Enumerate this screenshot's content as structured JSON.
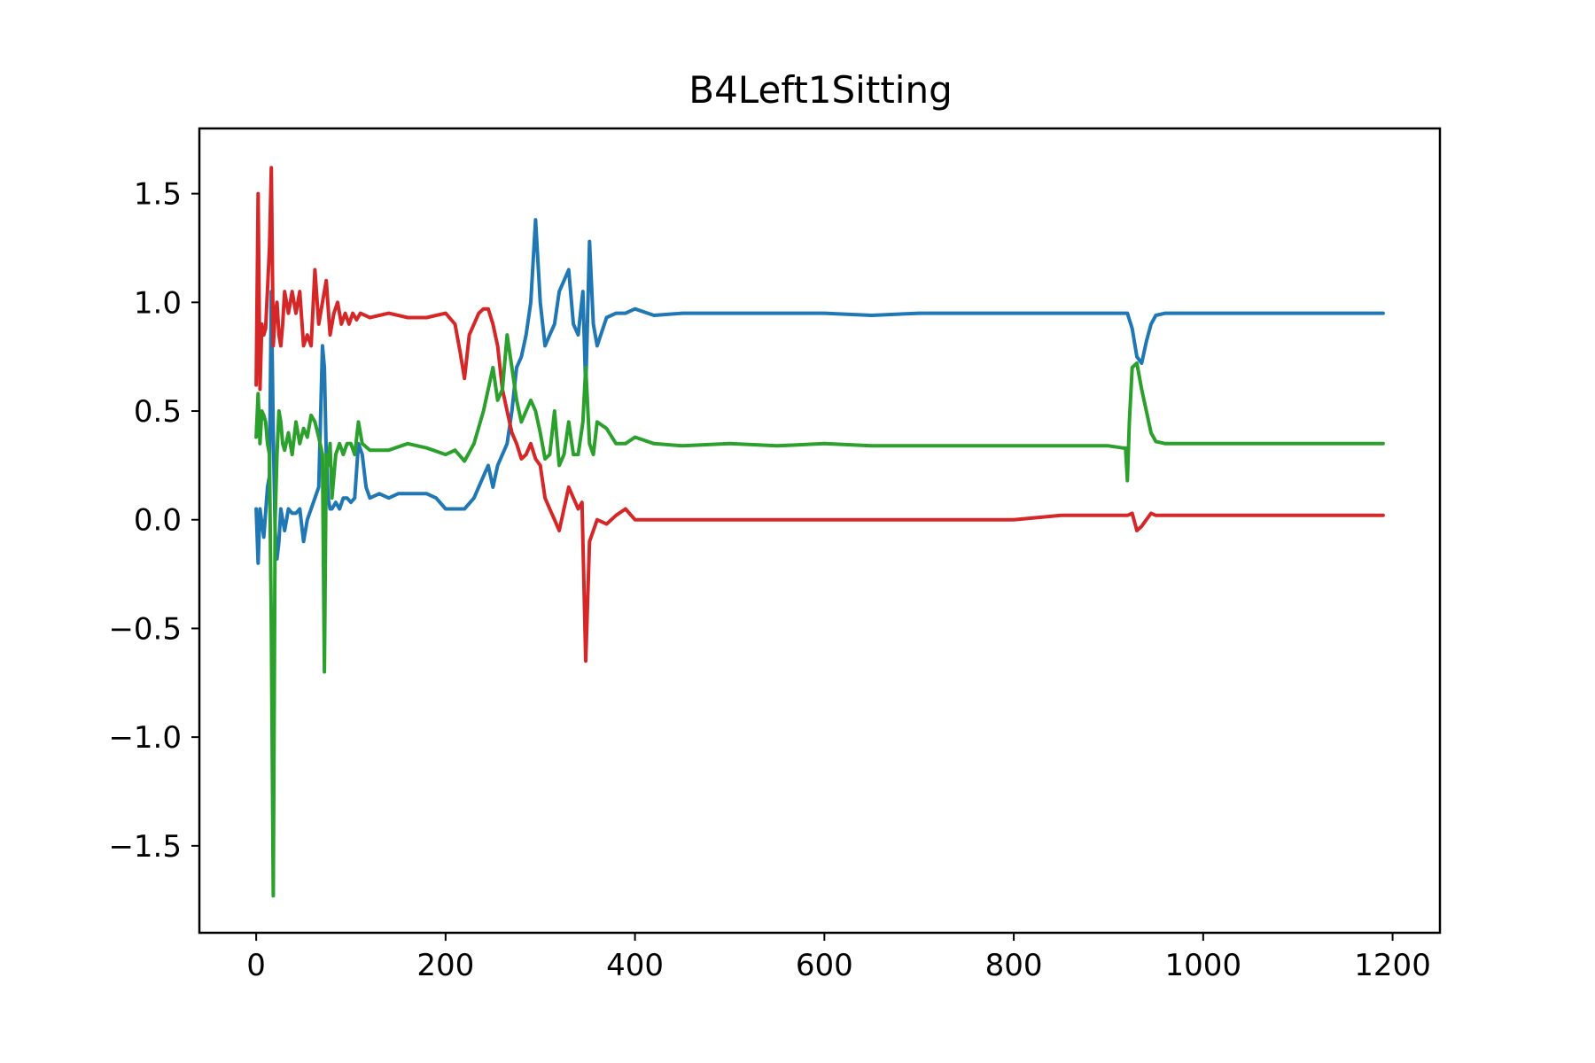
{
  "chart_data": {
    "type": "line",
    "title": "B4Left1Sitting",
    "xlabel": "",
    "ylabel": "",
    "xlim": [
      -60,
      1250
    ],
    "ylim": [
      -1.9,
      1.8
    ],
    "xticks": [
      0,
      200,
      400,
      600,
      800,
      1000,
      1200
    ],
    "xtick_labels": [
      "0",
      "200",
      "400",
      "600",
      "800",
      "1000",
      "1200"
    ],
    "yticks": [
      -1.5,
      -1.0,
      -0.5,
      0.0,
      0.5,
      1.0,
      1.5
    ],
    "ytick_labels": [
      "−1.5",
      "−1.0",
      "−0.5",
      "0.0",
      "0.5",
      "1.0",
      "1.5"
    ],
    "grid": false,
    "legend": "none",
    "series": [
      {
        "color": "#1f77b4",
        "x": [
          0,
          2,
          4,
          8,
          12,
          14,
          16,
          18,
          20,
          22,
          24,
          26,
          28,
          30,
          34,
          38,
          42,
          46,
          50,
          54,
          58,
          62,
          66,
          70,
          72,
          74,
          76,
          78,
          80,
          84,
          88,
          92,
          96,
          100,
          104,
          108,
          112,
          116,
          120,
          130,
          140,
          150,
          160,
          170,
          180,
          190,
          200,
          210,
          220,
          230,
          240,
          245,
          250,
          255,
          260,
          265,
          270,
          275,
          280,
          285,
          290,
          295,
          300,
          305,
          310,
          315,
          320,
          325,
          330,
          335,
          340,
          345,
          348,
          352,
          356,
          360,
          370,
          380,
          390,
          400,
          420,
          450,
          500,
          550,
          600,
          650,
          700,
          750,
          800,
          850,
          900,
          915,
          920,
          925,
          930,
          935,
          940,
          945,
          950,
          960,
          1000,
          1050,
          1100,
          1150,
          1190
        ],
        "y": [
          0.05,
          -0.2,
          0.05,
          -0.08,
          0.15,
          0.2,
          1.05,
          0.4,
          -0.05,
          -0.18,
          -0.1,
          0.05,
          0.0,
          -0.05,
          0.05,
          0.03,
          0.03,
          0.05,
          -0.1,
          0.0,
          0.05,
          0.1,
          0.15,
          0.8,
          0.7,
          0.3,
          0.1,
          0.05,
          0.05,
          0.08,
          0.05,
          0.1,
          0.1,
          0.08,
          0.1,
          0.35,
          0.3,
          0.15,
          0.1,
          0.12,
          0.1,
          0.12,
          0.12,
          0.12,
          0.12,
          0.1,
          0.05,
          0.05,
          0.05,
          0.1,
          0.2,
          0.25,
          0.15,
          0.25,
          0.3,
          0.35,
          0.5,
          0.7,
          0.75,
          0.85,
          1.0,
          1.38,
          1.0,
          0.8,
          0.85,
          0.9,
          1.05,
          1.1,
          1.15,
          0.9,
          0.85,
          1.05,
          0.6,
          1.28,
          0.9,
          0.8,
          0.93,
          0.95,
          0.95,
          0.97,
          0.94,
          0.95,
          0.95,
          0.95,
          0.95,
          0.94,
          0.95,
          0.95,
          0.95,
          0.95,
          0.95,
          0.95,
          0.95,
          0.88,
          0.75,
          0.72,
          0.82,
          0.9,
          0.94,
          0.95,
          0.95,
          0.95,
          0.95,
          0.95,
          0.95
        ]
      },
      {
        "color": "#d62728",
        "x": [
          0,
          2,
          4,
          6,
          8,
          10,
          14,
          16,
          18,
          20,
          22,
          24,
          26,
          28,
          30,
          34,
          38,
          42,
          46,
          50,
          54,
          58,
          62,
          66,
          70,
          74,
          78,
          82,
          86,
          90,
          94,
          98,
          102,
          106,
          110,
          120,
          140,
          160,
          180,
          200,
          210,
          215,
          220,
          225,
          230,
          235,
          240,
          245,
          250,
          255,
          260,
          265,
          270,
          275,
          280,
          285,
          290,
          295,
          300,
          305,
          310,
          315,
          320,
          330,
          340,
          344,
          348,
          352,
          356,
          360,
          370,
          380,
          390,
          400,
          420,
          450,
          500,
          550,
          600,
          650,
          700,
          750,
          800,
          850,
          900,
          920,
          925,
          930,
          935,
          940,
          945,
          950,
          960,
          1000,
          1050,
          1100,
          1150,
          1190
        ],
        "y": [
          0.62,
          1.5,
          0.6,
          0.9,
          0.85,
          0.88,
          1.25,
          1.62,
          0.8,
          0.95,
          1.0,
          0.85,
          0.8,
          0.9,
          1.05,
          0.95,
          1.05,
          0.95,
          1.05,
          0.8,
          0.85,
          0.8,
          1.15,
          0.9,
          1.0,
          1.1,
          0.85,
          0.95,
          1.0,
          0.9,
          0.95,
          0.9,
          0.95,
          0.92,
          0.95,
          0.93,
          0.95,
          0.93,
          0.93,
          0.95,
          0.9,
          0.78,
          0.65,
          0.85,
          0.9,
          0.95,
          0.97,
          0.97,
          0.9,
          0.8,
          0.6,
          0.5,
          0.4,
          0.35,
          0.28,
          0.3,
          0.35,
          0.28,
          0.25,
          0.1,
          0.05,
          0.0,
          -0.05,
          0.15,
          0.05,
          0.08,
          -0.65,
          -0.1,
          -0.05,
          0.0,
          -0.02,
          0.02,
          0.05,
          0.0,
          0.0,
          0.0,
          0.0,
          0.0,
          0.0,
          0.0,
          0.0,
          0.0,
          0.0,
          0.02,
          0.02,
          0.02,
          0.03,
          -0.05,
          -0.03,
          0.0,
          0.03,
          0.02,
          0.02,
          0.02,
          0.02,
          0.02,
          0.02,
          0.02
        ]
      },
      {
        "color": "#2ca02c",
        "x": [
          0,
          2,
          4,
          6,
          8,
          10,
          12,
          14,
          16,
          18,
          20,
          22,
          24,
          26,
          28,
          30,
          34,
          38,
          42,
          46,
          50,
          54,
          58,
          62,
          66,
          70,
          72,
          74,
          76,
          78,
          80,
          84,
          88,
          92,
          96,
          100,
          104,
          108,
          112,
          120,
          140,
          160,
          180,
          200,
          210,
          220,
          230,
          240,
          250,
          255,
          260,
          265,
          270,
          275,
          280,
          285,
          290,
          295,
          300,
          305,
          310,
          315,
          320,
          325,
          330,
          335,
          340,
          345,
          348,
          352,
          356,
          360,
          370,
          380,
          390,
          400,
          420,
          450,
          500,
          550,
          600,
          650,
          700,
          750,
          800,
          850,
          900,
          915,
          918,
          920,
          922,
          925,
          930,
          935,
          940,
          945,
          950,
          960,
          1000,
          1050,
          1100,
          1150,
          1190
        ],
        "y": [
          0.38,
          0.58,
          0.35,
          0.5,
          0.48,
          0.45,
          0.35,
          0.3,
          -0.5,
          -1.73,
          0.0,
          0.3,
          0.5,
          0.45,
          0.35,
          0.32,
          0.4,
          0.3,
          0.45,
          0.35,
          0.42,
          0.38,
          0.48,
          0.45,
          0.38,
          0.3,
          -0.7,
          0.3,
          0.25,
          0.35,
          0.1,
          0.3,
          0.35,
          0.3,
          0.35,
          0.35,
          0.3,
          0.45,
          0.35,
          0.32,
          0.32,
          0.35,
          0.33,
          0.3,
          0.32,
          0.27,
          0.35,
          0.5,
          0.7,
          0.55,
          0.6,
          0.85,
          0.7,
          0.55,
          0.45,
          0.5,
          0.55,
          0.5,
          0.4,
          0.28,
          0.3,
          0.5,
          0.25,
          0.3,
          0.45,
          0.3,
          0.3,
          0.45,
          0.7,
          0.35,
          0.3,
          0.45,
          0.42,
          0.35,
          0.35,
          0.38,
          0.35,
          0.34,
          0.35,
          0.34,
          0.35,
          0.34,
          0.34,
          0.34,
          0.34,
          0.34,
          0.34,
          0.33,
          0.33,
          0.18,
          0.45,
          0.7,
          0.72,
          0.6,
          0.5,
          0.4,
          0.36,
          0.35,
          0.35,
          0.35,
          0.35,
          0.35,
          0.35
        ]
      }
    ]
  }
}
